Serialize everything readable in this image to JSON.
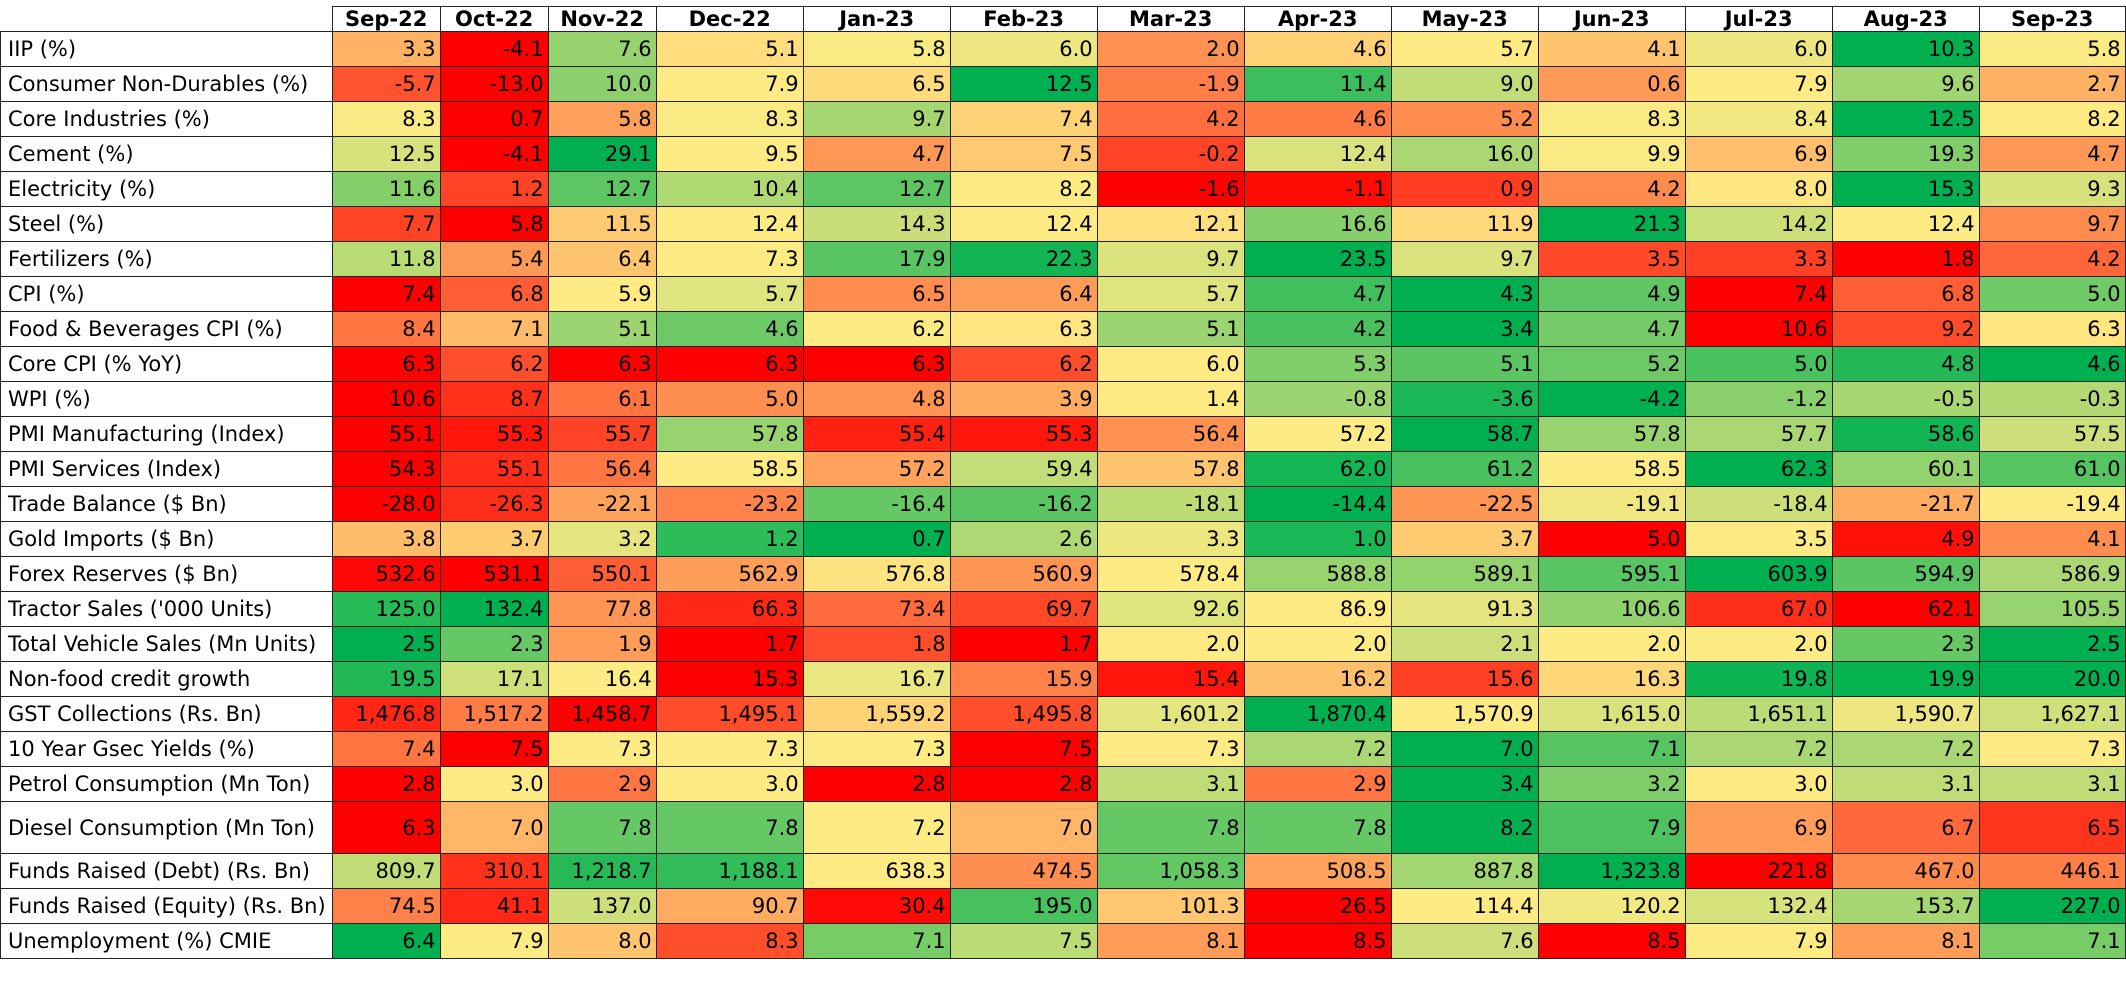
{
  "chart_data": {
    "type": "heatmap",
    "color_scale": {
      "low": "#ff0000",
      "mid": "#ffeb84",
      "high": "#00b050"
    },
    "columns": [
      "Sep-22",
      "Oct-22",
      "Nov-22",
      "Dec-22",
      "Jan-23",
      "Feb-23",
      "Mar-23",
      "Apr-23",
      "May-23",
      "Jun-23",
      "Jul-23",
      "Aug-23",
      "Sep-23"
    ],
    "rows": [
      {
        "label": "IIP (%)",
        "display": [
          "3.3",
          "-4.1",
          "7.6",
          "5.1",
          "5.8",
          "6.0",
          "2.0",
          "4.6",
          "5.7",
          "4.1",
          "6.0",
          "10.3",
          "5.8"
        ],
        "values": [
          3.3,
          -4.1,
          7.6,
          5.1,
          5.8,
          6.0,
          2.0,
          4.6,
          5.7,
          4.1,
          6.0,
          10.3,
          5.8
        ]
      },
      {
        "label": "Consumer Non-Durables (%)",
        "display": [
          "-5.7",
          "-13.0",
          "10.0",
          "7.9",
          "6.5",
          "12.5",
          "-1.9",
          "11.4",
          "9.0",
          "0.6",
          "7.9",
          "9.6",
          "2.7"
        ],
        "values": [
          -5.7,
          -13.0,
          10.0,
          7.9,
          6.5,
          12.5,
          -1.9,
          11.4,
          9.0,
          0.6,
          7.9,
          9.6,
          2.7
        ]
      },
      {
        "label": "Core Industries (%)",
        "display": [
          "8.3",
          "0.7",
          "5.8",
          "8.3",
          "9.7",
          "7.4",
          "4.2",
          "4.6",
          "5.2",
          "8.3",
          "8.4",
          "12.5",
          "8.2"
        ],
        "values": [
          8.3,
          0.7,
          5.8,
          8.3,
          9.7,
          7.4,
          4.2,
          4.6,
          5.2,
          8.3,
          8.4,
          12.5,
          8.2
        ]
      },
      {
        "label": "Cement (%)",
        "display": [
          "12.5",
          "-4.1",
          "29.1",
          "9.5",
          "4.7",
          "7.5",
          "-0.2",
          "12.4",
          "16.0",
          "9.9",
          "6.9",
          "19.3",
          "4.7"
        ],
        "values": [
          12.5,
          -4.1,
          29.1,
          9.5,
          4.7,
          7.5,
          -0.2,
          12.4,
          16.0,
          9.9,
          6.9,
          19.3,
          4.7
        ]
      },
      {
        "label": "Electricity (%)",
        "display": [
          "11.6",
          "1.2",
          "12.7",
          "10.4",
          "12.7",
          "8.2",
          "-1.6",
          "-1.1",
          "0.9",
          "4.2",
          "8.0",
          "15.3",
          "9.3"
        ],
        "values": [
          11.6,
          1.2,
          12.7,
          10.4,
          12.7,
          8.2,
          -1.6,
          -1.1,
          0.9,
          4.2,
          8.0,
          15.3,
          9.3
        ]
      },
      {
        "label": "Steel (%)",
        "display": [
          "7.7",
          "5.8",
          "11.5",
          "12.4",
          "14.3",
          "12.4",
          "12.1",
          "16.6",
          "11.9",
          "21.3",
          "14.2",
          "12.4",
          "9.7"
        ],
        "values": [
          7.7,
          5.8,
          11.5,
          12.4,
          14.3,
          12.4,
          12.1,
          16.6,
          11.9,
          21.3,
          14.2,
          12.4,
          9.7
        ]
      },
      {
        "label": "Fertilizers (%)",
        "display": [
          "11.8",
          "5.4",
          "6.4",
          "7.3",
          "17.9",
          "22.3",
          "9.7",
          "23.5",
          "9.7",
          "3.5",
          "3.3",
          "1.8",
          "4.2"
        ],
        "values": [
          11.8,
          5.4,
          6.4,
          7.3,
          17.9,
          22.3,
          9.7,
          23.5,
          9.7,
          3.5,
          3.3,
          1.8,
          4.2
        ]
      },
      {
        "label": "CPI (%)",
        "reverse": true,
        "display": [
          "7.4",
          "6.8",
          "5.9",
          "5.7",
          "6.5",
          "6.4",
          "5.7",
          "4.7",
          "4.3",
          "4.9",
          "7.4",
          "6.8",
          "5.0"
        ],
        "values": [
          7.4,
          6.8,
          5.9,
          5.7,
          6.5,
          6.4,
          5.7,
          4.7,
          4.3,
          4.9,
          7.4,
          6.8,
          5.0
        ]
      },
      {
        "label": "Food & Beverages CPI (%)",
        "reverse": true,
        "display": [
          "8.4",
          "7.1",
          "5.1",
          "4.6",
          "6.2",
          "6.3",
          "5.1",
          "4.2",
          "3.4",
          "4.7",
          "10.6",
          "9.2",
          "6.3"
        ],
        "values": [
          8.4,
          7.1,
          5.1,
          4.6,
          6.2,
          6.3,
          5.1,
          4.2,
          3.4,
          4.7,
          10.6,
          9.2,
          6.3
        ]
      },
      {
        "label": "Core CPI (% YoY)",
        "reverse": true,
        "display": [
          "6.3",
          "6.2",
          "6.3",
          "6.3",
          "6.3",
          "6.2",
          "6.0",
          "5.3",
          "5.1",
          "5.2",
          "5.0",
          "4.8",
          "4.6"
        ],
        "values": [
          6.3,
          6.2,
          6.3,
          6.3,
          6.3,
          6.2,
          6.0,
          5.3,
          5.1,
          5.2,
          5.0,
          4.8,
          4.6
        ]
      },
      {
        "label": "WPI (%)",
        "reverse": true,
        "display": [
          "10.6",
          "8.7",
          "6.1",
          "5.0",
          "4.8",
          "3.9",
          "1.4",
          "-0.8",
          "-3.6",
          "-4.2",
          "-1.2",
          "-0.5",
          "-0.3"
        ],
        "values": [
          10.6,
          8.7,
          6.1,
          5.0,
          4.8,
          3.9,
          1.4,
          -0.8,
          -3.6,
          -4.2,
          -1.2,
          -0.5,
          -0.3
        ]
      },
      {
        "label": "PMI Manufacturing (Index)",
        "display": [
          "55.1",
          "55.3",
          "55.7",
          "57.8",
          "55.4",
          "55.3",
          "56.4",
          "57.2",
          "58.7",
          "57.8",
          "57.7",
          "58.6",
          "57.5"
        ],
        "values": [
          55.1,
          55.3,
          55.7,
          57.8,
          55.4,
          55.3,
          56.4,
          57.2,
          58.7,
          57.8,
          57.7,
          58.6,
          57.5
        ]
      },
      {
        "label": "PMI Services (Index)",
        "display": [
          "54.3",
          "55.1",
          "56.4",
          "58.5",
          "57.2",
          "59.4",
          "57.8",
          "62.0",
          "61.2",
          "58.5",
          "62.3",
          "60.1",
          "61.0"
        ],
        "values": [
          54.3,
          55.1,
          56.4,
          58.5,
          57.2,
          59.4,
          57.8,
          62.0,
          61.2,
          58.5,
          62.3,
          60.1,
          61.0
        ]
      },
      {
        "label": "Trade Balance ($ Bn)",
        "display": [
          "-28.0",
          "-26.3",
          "-22.1",
          "-23.2",
          "-16.4",
          "-16.2",
          "-18.1",
          "-14.4",
          "-22.5",
          "-19.1",
          "-18.4",
          "-21.7",
          "-19.4"
        ],
        "values": [
          -28.0,
          -26.3,
          -22.1,
          -23.2,
          -16.4,
          -16.2,
          -18.1,
          -14.4,
          -22.5,
          -19.1,
          -18.4,
          -21.7,
          -19.4
        ]
      },
      {
        "label": "Gold Imports ($ Bn)",
        "reverse": true,
        "display": [
          "3.8",
          "3.7",
          "3.2",
          "1.2",
          "0.7",
          "2.6",
          "3.3",
          "1.0",
          "3.7",
          "5.0",
          "3.5",
          "4.9",
          "4.1"
        ],
        "values": [
          3.8,
          3.7,
          3.2,
          1.2,
          0.7,
          2.6,
          3.3,
          1.0,
          3.7,
          5.0,
          3.5,
          4.9,
          4.1
        ]
      },
      {
        "label": "Forex Reserves ($ Bn)",
        "display": [
          "532.6",
          "531.1",
          "550.1",
          "562.9",
          "576.8",
          "560.9",
          "578.4",
          "588.8",
          "589.1",
          "595.1",
          "603.9",
          "594.9",
          "586.9"
        ],
        "values": [
          532.6,
          531.1,
          550.1,
          562.9,
          576.8,
          560.9,
          578.4,
          588.8,
          589.1,
          595.1,
          603.9,
          594.9,
          586.9
        ]
      },
      {
        "label": "Tractor Sales ('000 Units)",
        "display": [
          "125.0",
          "132.4",
          "77.8",
          "66.3",
          "73.4",
          "69.7",
          "92.6",
          "86.9",
          "91.3",
          "106.6",
          "67.0",
          "62.1",
          "105.5"
        ],
        "values": [
          125.0,
          132.4,
          77.8,
          66.3,
          73.4,
          69.7,
          92.6,
          86.9,
          91.3,
          106.6,
          67.0,
          62.1,
          105.5
        ]
      },
      {
        "label": "Total Vehicle Sales (Mn Units)",
        "display": [
          "2.5",
          "2.3",
          "1.9",
          "1.7",
          "1.8",
          "1.7",
          "2.0",
          "2.0",
          "2.1",
          "2.0",
          "2.0",
          "2.3",
          "2.5"
        ],
        "values": [
          2.5,
          2.3,
          1.9,
          1.7,
          1.8,
          1.7,
          2.0,
          2.0,
          2.1,
          2.0,
          2.0,
          2.3,
          2.5
        ]
      },
      {
        "label": "Non-food credit growth",
        "display": [
          "19.5",
          "17.1",
          "16.4",
          "15.3",
          "16.7",
          "15.9",
          "15.4",
          "16.2",
          "15.6",
          "16.3",
          "19.8",
          "19.9",
          "20.0"
        ],
        "values": [
          19.5,
          17.1,
          16.4,
          15.3,
          16.7,
          15.9,
          15.4,
          16.2,
          15.6,
          16.3,
          19.8,
          19.9,
          20.0
        ]
      },
      {
        "label": "GST Collections (Rs. Bn)",
        "display": [
          "1,476.8",
          "1,517.2",
          "1,458.7",
          "1,495.1",
          "1,559.2",
          "1,495.8",
          "1,601.2",
          "1,870.4",
          "1,570.9",
          "1,615.0",
          "1,651.1",
          "1,590.7",
          "1,627.1"
        ],
        "values": [
          1476.8,
          1517.2,
          1458.7,
          1495.1,
          1559.2,
          1495.8,
          1601.2,
          1870.4,
          1570.9,
          1615.0,
          1651.1,
          1590.7,
          1627.1
        ]
      },
      {
        "label": "10 Year Gsec Yields (%)",
        "reverse": true,
        "display": [
          "7.4",
          "7.5",
          "7.3",
          "7.3",
          "7.3",
          "7.5",
          "7.3",
          "7.2",
          "7.0",
          "7.1",
          "7.2",
          "7.2",
          "7.3"
        ],
        "values": [
          7.4,
          7.5,
          7.3,
          7.3,
          7.3,
          7.5,
          7.3,
          7.2,
          7.0,
          7.1,
          7.2,
          7.2,
          7.3
        ]
      },
      {
        "label": "Petrol Consumption (Mn Ton)",
        "display": [
          "2.8",
          "3.0",
          "2.9",
          "3.0",
          "2.8",
          "2.8",
          "3.1",
          "2.9",
          "3.4",
          "3.2",
          "3.0",
          "3.1",
          "3.1"
        ],
        "values": [
          2.8,
          3.0,
          2.9,
          3.0,
          2.8,
          2.8,
          3.1,
          2.9,
          3.4,
          3.2,
          3.0,
          3.1,
          3.1
        ]
      },
      {
        "label": "Diesel Consumption (Mn Ton)",
        "tall": true,
        "display": [
          "6.3",
          "7.0",
          "7.8",
          "7.8",
          "7.2",
          "7.0",
          "7.8",
          "7.8",
          "8.2",
          "7.9",
          "6.9",
          "6.7",
          "6.5"
        ],
        "values": [
          6.3,
          7.0,
          7.8,
          7.8,
          7.2,
          7.0,
          7.8,
          7.8,
          8.2,
          7.9,
          6.9,
          6.7,
          6.5
        ]
      },
      {
        "label": "Funds Raised (Debt) (Rs. Bn)",
        "display": [
          "809.7",
          "310.1",
          "1,218.7",
          "1,188.1",
          "638.3",
          "474.5",
          "1,058.3",
          "508.5",
          "887.8",
          "1,323.8",
          "221.8",
          "467.0",
          "446.1"
        ],
        "values": [
          809.7,
          310.1,
          1218.7,
          1188.1,
          638.3,
          474.5,
          1058.3,
          508.5,
          887.8,
          1323.8,
          221.8,
          467.0,
          446.1
        ]
      },
      {
        "label": "Funds Raised (Equity) (Rs. Bn)",
        "display": [
          "74.5",
          "41.1",
          "137.0",
          "90.7",
          "30.4",
          "195.0",
          "101.3",
          "26.5",
          "114.4",
          "120.2",
          "132.4",
          "153.7",
          "227.0"
        ],
        "values": [
          74.5,
          41.1,
          137.0,
          90.7,
          30.4,
          195.0,
          101.3,
          26.5,
          114.4,
          120.2,
          132.4,
          153.7,
          227.0
        ]
      },
      {
        "label": "Unemployment (%) CMIE",
        "reverse": true,
        "display": [
          "6.4",
          "7.9",
          "8.0",
          "8.3",
          "7.1",
          "7.5",
          "8.1",
          "8.5",
          "7.6",
          "8.5",
          "7.9",
          "8.1",
          "7.1"
        ],
        "values": [
          6.4,
          7.9,
          8.0,
          8.3,
          7.1,
          7.5,
          8.1,
          8.5,
          7.6,
          8.5,
          7.9,
          8.1,
          7.1
        ]
      }
    ]
  }
}
